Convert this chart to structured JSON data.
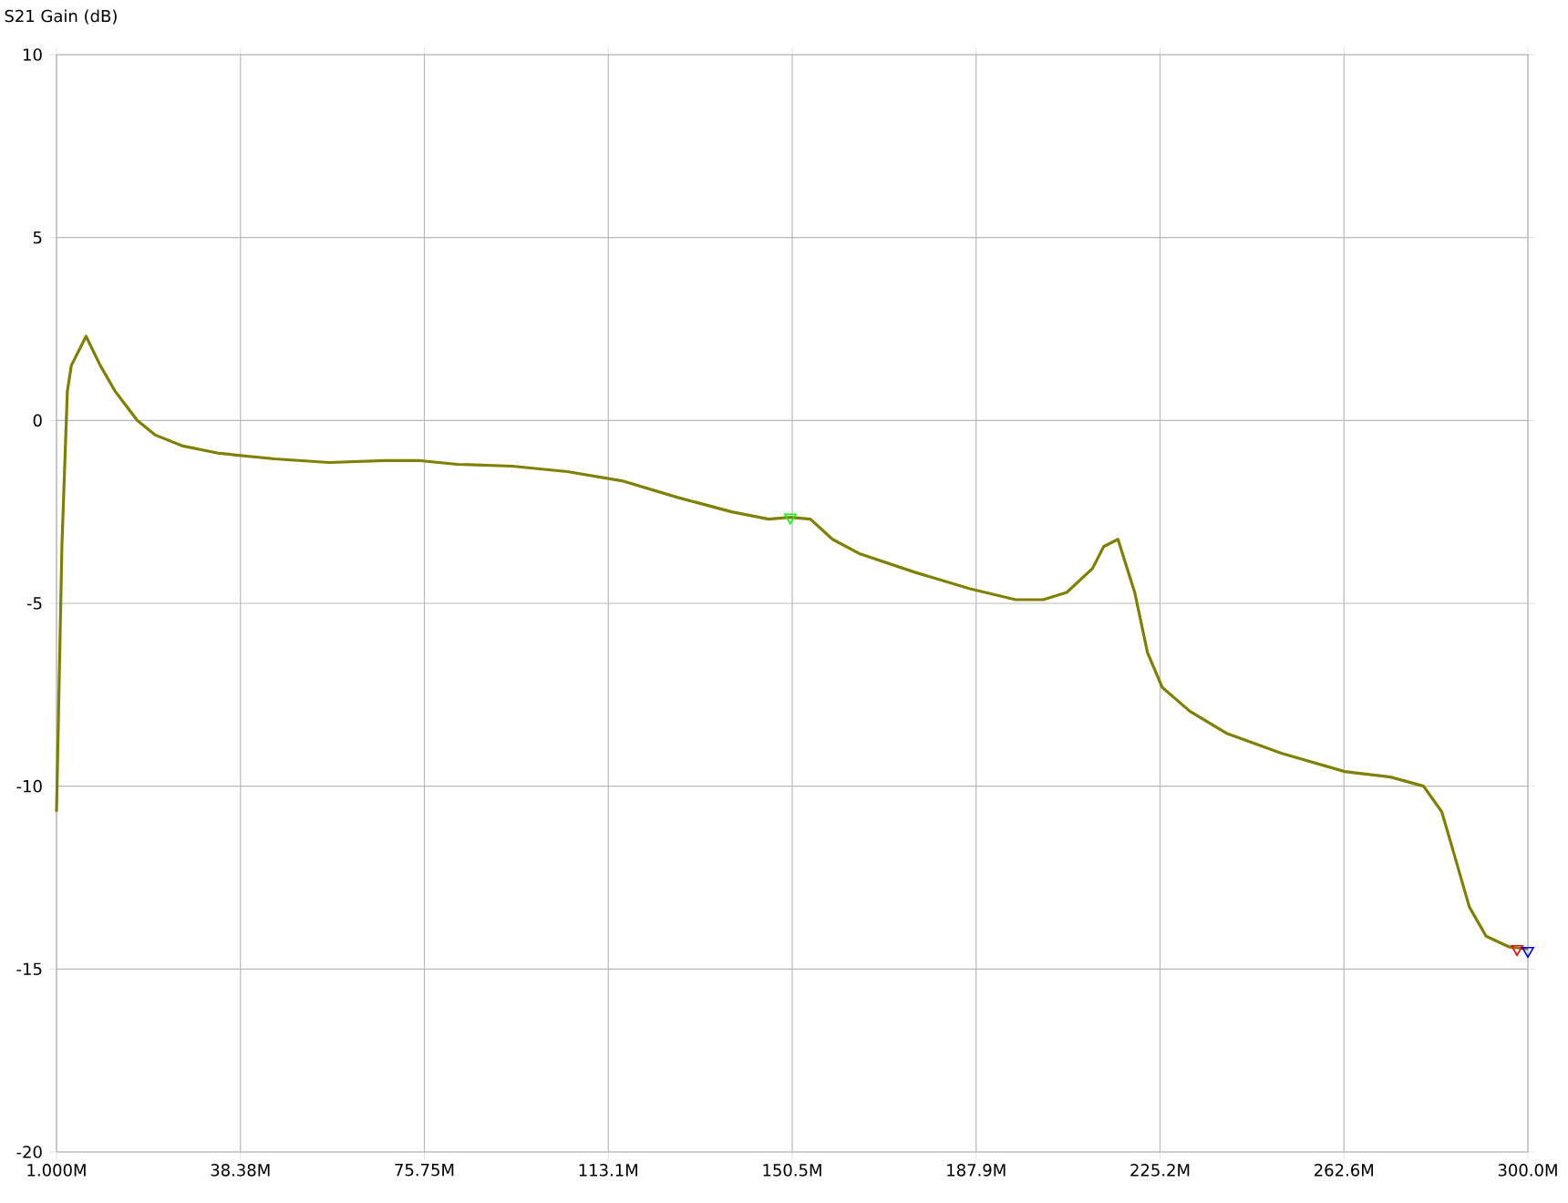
{
  "chart_data": {
    "type": "line",
    "ylabel": "S21 Gain (dB)",
    "xlim": [
      1,
      300
    ],
    "ylim": [
      -20,
      10
    ],
    "xticks": [
      {
        "value": 1,
        "label": "1.000M"
      },
      {
        "value": 38.375,
        "label": "38.38M"
      },
      {
        "value": 75.75,
        "label": "75.75M"
      },
      {
        "value": 113.125,
        "label": "113.1M"
      },
      {
        "value": 150.5,
        "label": "150.5M"
      },
      {
        "value": 187.875,
        "label": "187.9M"
      },
      {
        "value": 225.25,
        "label": "225.2M"
      },
      {
        "value": 262.625,
        "label": "262.6M"
      },
      {
        "value": 300,
        "label": "300.0M"
      }
    ],
    "yticks": [
      -20,
      -15,
      -10,
      -5,
      0,
      5,
      10
    ],
    "grid": true,
    "line_style": "solid",
    "series": [
      {
        "color": "#808000",
        "x": [
          1,
          2.1,
          3.2,
          4,
          7,
          9.9,
          12.9,
          17.4,
          21.1,
          26.7,
          34.1,
          45.3,
          56.4,
          67.6,
          75,
          82.4,
          93.6,
          104.8,
          115.9,
          127.1,
          138.2,
          145.7,
          150.1,
          154.2,
          158.7,
          164.3,
          175.4,
          186.6,
          195.9,
          201.5,
          206.3,
          211.5,
          213.8,
          216.7,
          220.1,
          222.7,
          225.7,
          231.3,
          238.7,
          249.9,
          262.8,
          272.1,
          278.8,
          282.5,
          285.1,
          288.1,
          291.5,
          296.3,
          300
        ],
        "values": [
          -10.7,
          -3.4,
          0.8,
          1.5,
          2.3,
          1.5,
          0.8,
          0.0,
          -0.4,
          -0.7,
          -0.9,
          -1.05,
          -1.15,
          -1.1,
          -1.1,
          -1.2,
          -1.25,
          -1.4,
          -1.65,
          -2.1,
          -2.5,
          -2.7,
          -2.65,
          -2.7,
          -3.25,
          -3.65,
          -4.15,
          -4.6,
          -4.9,
          -4.9,
          -4.7,
          -4.05,
          -3.45,
          -3.25,
          -4.7,
          -6.35,
          -7.3,
          -7.95,
          -8.55,
          -9.1,
          -9.6,
          -9.75,
          -10.0,
          -10.7,
          -11.9,
          -13.3,
          -14.1,
          -14.4,
          -14.45
        ]
      },
      {
        "type": "scatter",
        "marker": "triangle",
        "x": [
          150.1,
          297.8,
          300
        ],
        "values": [
          -2.65,
          -14.45,
          -14.5
        ],
        "colors": [
          "#00ff00",
          "#ff0000",
          "#0000ff"
        ]
      }
    ]
  }
}
